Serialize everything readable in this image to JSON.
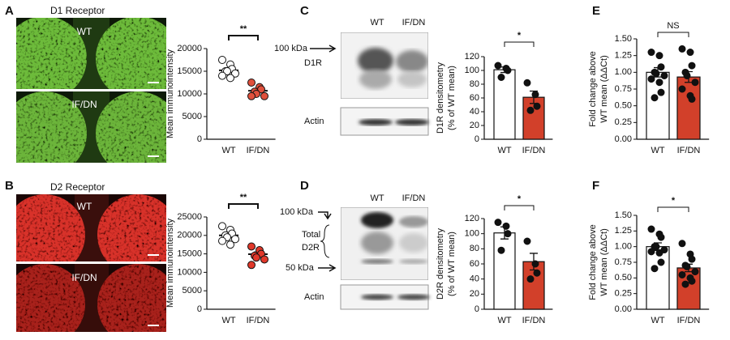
{
  "figure": {
    "panels": [
      {
        "letter": "A",
        "title": "D1 Receptor",
        "image_labels": [
          "WT",
          "IF/DN"
        ]
      },
      {
        "letter": "B",
        "title": "D2 Receptor",
        "image_labels": [
          "WT",
          "IF/DN"
        ]
      },
      {
        "letter": "C",
        "lanes": [
          "WT",
          "IF/DN"
        ],
        "markers": [
          "100 kDa"
        ],
        "band_label": [
          "D1R"
        ],
        "loading": "Actin"
      },
      {
        "letter": "D",
        "lanes": [
          "WT",
          "IF/DN"
        ],
        "markers": [
          "100 kDa",
          "50 kDa"
        ],
        "band_label": [
          "Total",
          "D2R"
        ],
        "loading": "Actin"
      },
      {
        "letter": "E"
      },
      {
        "letter": "F"
      }
    ]
  },
  "chart_data": [
    {
      "type": "dot",
      "ylabel": [
        "Mean immunointensity"
      ],
      "categories": [
        "WT",
        "IF/DN"
      ],
      "values": [
        15200,
        10700
      ],
      "errors": [
        450,
        400
      ],
      "points": [
        [
          17500,
          16500,
          15500,
          15000,
          15000,
          14500,
          14000,
          13500
        ],
        [
          12500,
          11500,
          11000,
          10500,
          10000,
          9500,
          9500
        ]
      ],
      "point_colors": [
        "#ffffff",
        "#e0503c"
      ],
      "significance": "**",
      "ylim": [
        0,
        20000
      ],
      "yticks": [
        0,
        5000,
        10000,
        15000,
        20000
      ]
    },
    {
      "type": "dot",
      "ylabel": [
        "Mean immunointensity"
      ],
      "categories": [
        "WT",
        "IF/DN"
      ],
      "values": [
        20000,
        14900
      ],
      "errors": [
        550,
        600
      ],
      "points": [
        [
          22500,
          21500,
          20500,
          20000,
          19500,
          19000,
          18500,
          17500
        ],
        [
          17000,
          16000,
          15000,
          14500,
          14000,
          13500,
          12000
        ]
      ],
      "point_colors": [
        "#ffffff",
        "#e0382a"
      ],
      "significance": "**",
      "ylim": [
        0,
        25000
      ],
      "yticks": [
        0,
        5000,
        10000,
        15000,
        20000,
        25000
      ]
    },
    {
      "type": "bar",
      "ylabel": [
        "D1R densitometry",
        "(% of WT mean)"
      ],
      "categories": [
        "WT",
        "IF/DN"
      ],
      "values": [
        101,
        61
      ],
      "errors": [
        4,
        9
      ],
      "points": [
        [
          107,
          103,
          100,
          90
        ],
        [
          82,
          65,
          48,
          42
        ]
      ],
      "bar_colors": [
        "#ffffff",
        "#d2402a"
      ],
      "point_colors": [
        "#111111",
        "#111111"
      ],
      "significance": "*",
      "ylim": [
        0,
        120
      ],
      "yticks": [
        0,
        20,
        40,
        60,
        80,
        100,
        120
      ]
    },
    {
      "type": "bar",
      "ylabel": [
        "D2R densitometry",
        "(% of WT mean)"
      ],
      "categories": [
        "WT",
        "IF/DN"
      ],
      "values": [
        101,
        63
      ],
      "errors": [
        8,
        11
      ],
      "points": [
        [
          115,
          110,
          100,
          78
        ],
        [
          90,
          60,
          48,
          40
        ]
      ],
      "bar_colors": [
        "#ffffff",
        "#d2402a"
      ],
      "point_colors": [
        "#111111",
        "#111111"
      ],
      "significance": "*",
      "ylim": [
        0,
        120
      ],
      "yticks": [
        0,
        20,
        40,
        60,
        80,
        100,
        120
      ]
    },
    {
      "type": "bar",
      "ylabel": [
        "Fold change above",
        "WT mean (ΔΔCt)"
      ],
      "categories": [
        "WT",
        "IF/DN"
      ],
      "values": [
        1.0,
        0.93
      ],
      "errors": [
        0.07,
        0.08
      ],
      "points": [
        [
          1.3,
          1.25,
          1.08,
          1.0,
          0.98,
          0.95,
          0.9,
          0.85,
          0.7,
          0.62
        ],
        [
          1.35,
          1.3,
          1.1,
          1.0,
          0.95,
          0.85,
          0.75,
          0.65,
          0.6
        ]
      ],
      "bar_colors": [
        "#ffffff",
        "#d2402a"
      ],
      "point_colors": [
        "#111111",
        "#111111"
      ],
      "significance": "NS",
      "ylim": [
        0,
        1.5
      ],
      "yticks": [
        {
          "value": 0,
          "label": "0.00"
        },
        {
          "value": 0.25,
          "label": "0.25"
        },
        {
          "value": 0.5,
          "label": "0.50"
        },
        {
          "value": 0.75,
          "label": "0.75"
        },
        {
          "value": 1,
          "label": "1.00"
        },
        {
          "value": 1.25,
          "label": "1.25"
        },
        {
          "value": 1.5,
          "label": "1.50"
        }
      ]
    },
    {
      "type": "bar",
      "ylabel": [
        "Fold change above",
        "WT mean (ΔΔCt)"
      ],
      "categories": [
        "WT",
        "IF/DN"
      ],
      "values": [
        1.0,
        0.66
      ],
      "errors": [
        0.06,
        0.06
      ],
      "points": [
        [
          1.28,
          1.2,
          1.15,
          1.0,
          1.0,
          0.95,
          0.92,
          0.9,
          0.75,
          0.65
        ],
        [
          1.05,
          0.88,
          0.8,
          0.7,
          0.68,
          0.6,
          0.55,
          0.5,
          0.45,
          0.4
        ]
      ],
      "bar_colors": [
        "#ffffff",
        "#d2402a"
      ],
      "point_colors": [
        "#111111",
        "#111111"
      ],
      "significance": "*",
      "ylim": [
        0,
        1.5
      ],
      "yticks": [
        {
          "value": 0,
          "label": "0.00"
        },
        {
          "value": 0.25,
          "label": "0.25"
        },
        {
          "value": 0.5,
          "label": "0.50"
        },
        {
          "value": 0.75,
          "label": "0.75"
        },
        {
          "value": 1,
          "label": "1.00"
        },
        {
          "value": 1.25,
          "label": "1.25"
        },
        {
          "value": 1.5,
          "label": "1.50"
        }
      ]
    }
  ]
}
